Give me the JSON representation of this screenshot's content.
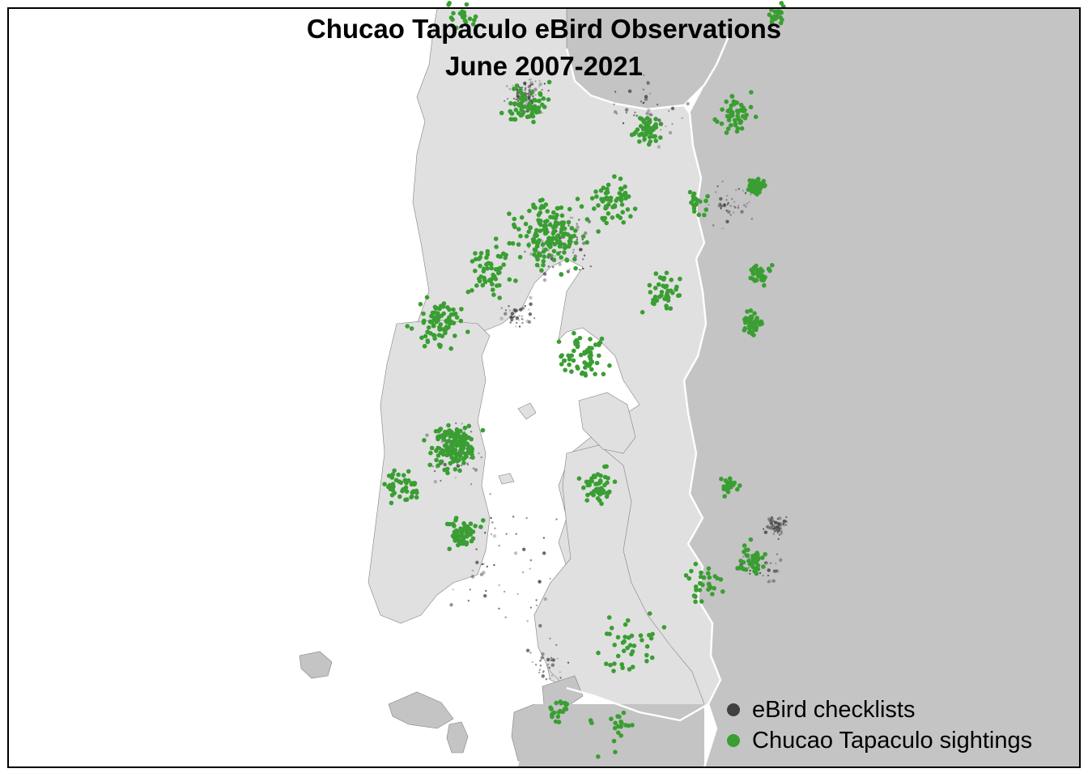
{
  "title": {
    "line1": "Chucao Tapaculo eBird Observations",
    "line2": "June 2007-2021"
  },
  "legend": [
    {
      "label": "eBird checklists",
      "color": "#404040"
    },
    {
      "label": "Chucao Tapaculo sightings",
      "color": "#3a9e33"
    }
  ],
  "colors": {
    "sea": "#ffffff",
    "chiloe_land": "#e0e0e0",
    "mainland_other": "#c4c4c4",
    "border_line": "#ffffff",
    "checklist": "#404040",
    "sighting": "#3a9e33"
  }
}
